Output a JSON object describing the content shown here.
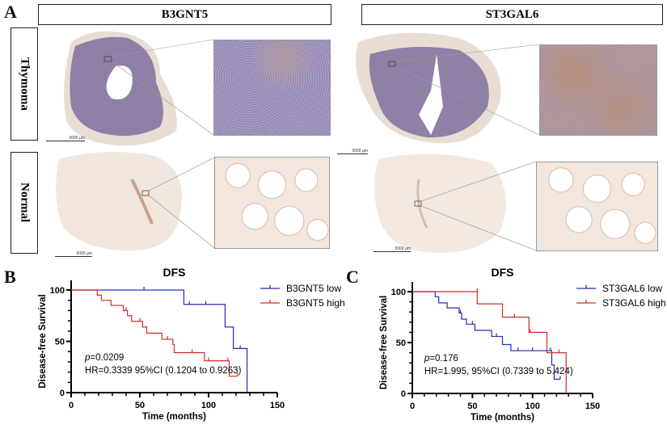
{
  "panel_a": {
    "label": "A",
    "columns": [
      "B3GNT5",
      "ST3GAL6"
    ],
    "rows": [
      "Thymoma",
      "Normal"
    ],
    "scale_bar": "5000 µm"
  },
  "chart_data": [
    {
      "panel_label": "B",
      "type": "line",
      "subtype": "kaplan-meier",
      "title": "DFS",
      "xlabel": "Time (months)",
      "ylabel": "Disease-free Survival",
      "xlim": [
        0,
        150
      ],
      "ylim": [
        0,
        100
      ],
      "xticks": [
        0,
        50,
        100,
        150
      ],
      "yticks": [
        0,
        50,
        100
      ],
      "legend_position": "top-right",
      "annotation_p": "=0.0209",
      "annotation_p_symbol": "p",
      "annotation_hr": "HR=0.3339 95%CI (0.1204 to 0.9263)",
      "series": [
        {
          "name": "B3GNT5 low",
          "color": "#2a2ab8",
          "steps": [
            [
              0,
              100
            ],
            [
              82,
              86
            ],
            [
              112,
              64
            ],
            [
              118,
              43
            ],
            [
              128,
              0
            ]
          ],
          "censored": [
            [
              53,
              100
            ],
            [
              86,
              86
            ],
            [
              98,
              86
            ],
            [
              123,
              43
            ]
          ]
        },
        {
          "name": "B3GNT5 high",
          "color": "#d42a2a",
          "steps": [
            [
              0,
              100
            ],
            [
              19,
              95
            ],
            [
              22,
              90
            ],
            [
              29,
              85
            ],
            [
              38,
              80
            ],
            [
              41,
              75
            ],
            [
              44,
              69.5
            ],
            [
              52,
              64
            ],
            [
              55,
              58
            ],
            [
              66,
              52
            ],
            [
              74,
              47
            ],
            [
              75,
              39
            ],
            [
              97,
              31
            ],
            [
              115,
              16
            ]
          ],
          "censored": [
            [
              40,
              80
            ],
            [
              50,
              69.5
            ],
            [
              70,
              52
            ],
            [
              88,
              39
            ],
            [
              100,
              31
            ],
            [
              114,
              31
            ],
            [
              121,
              16
            ]
          ]
        }
      ]
    },
    {
      "panel_label": "C",
      "type": "line",
      "subtype": "kaplan-meier",
      "title": "DFS",
      "xlabel": "Time (months)",
      "ylabel": "Disease-free Survival",
      "xlim": [
        0,
        150
      ],
      "ylim": [
        0,
        100
      ],
      "xticks": [
        0,
        50,
        100,
        150
      ],
      "yticks": [
        0,
        50,
        100
      ],
      "legend_position": "top-right",
      "annotation_p": "=0.176",
      "annotation_p_symbol": "p",
      "annotation_hr": "HR=1.995, 95%CI (0.7339 to 5.424)",
      "series": [
        {
          "name": "ST3GAL6 low",
          "color": "#2a2ab8",
          "steps": [
            [
              0,
              100
            ],
            [
              19,
              95
            ],
            [
              22,
              89
            ],
            [
              29,
              84
            ],
            [
              39,
              79
            ],
            [
              41,
              73
            ],
            [
              45,
              68
            ],
            [
              52,
              62
            ],
            [
              66,
              56
            ],
            [
              75,
              48
            ],
            [
              82,
              42
            ],
            [
              116,
              28
            ],
            [
              118,
              14
            ]
          ],
          "censored": [
            [
              40,
              79
            ],
            [
              50,
              68
            ],
            [
              70,
              56
            ],
            [
              88,
              42
            ],
            [
              100,
              42
            ],
            [
              115,
              42
            ],
            [
              123,
              14
            ]
          ]
        },
        {
          "name": "ST3GAL6 high",
          "color": "#d42a2a",
          "steps": [
            [
              0,
              100
            ],
            [
              54,
              88
            ],
            [
              75,
              75
            ],
            [
              97,
              60
            ],
            [
              112,
              40
            ],
            [
              128,
              0
            ]
          ],
          "censored": [
            [
              54,
              100
            ],
            [
              85,
              75
            ],
            [
              98,
              60
            ],
            [
              122,
              40
            ]
          ]
        }
      ]
    }
  ]
}
